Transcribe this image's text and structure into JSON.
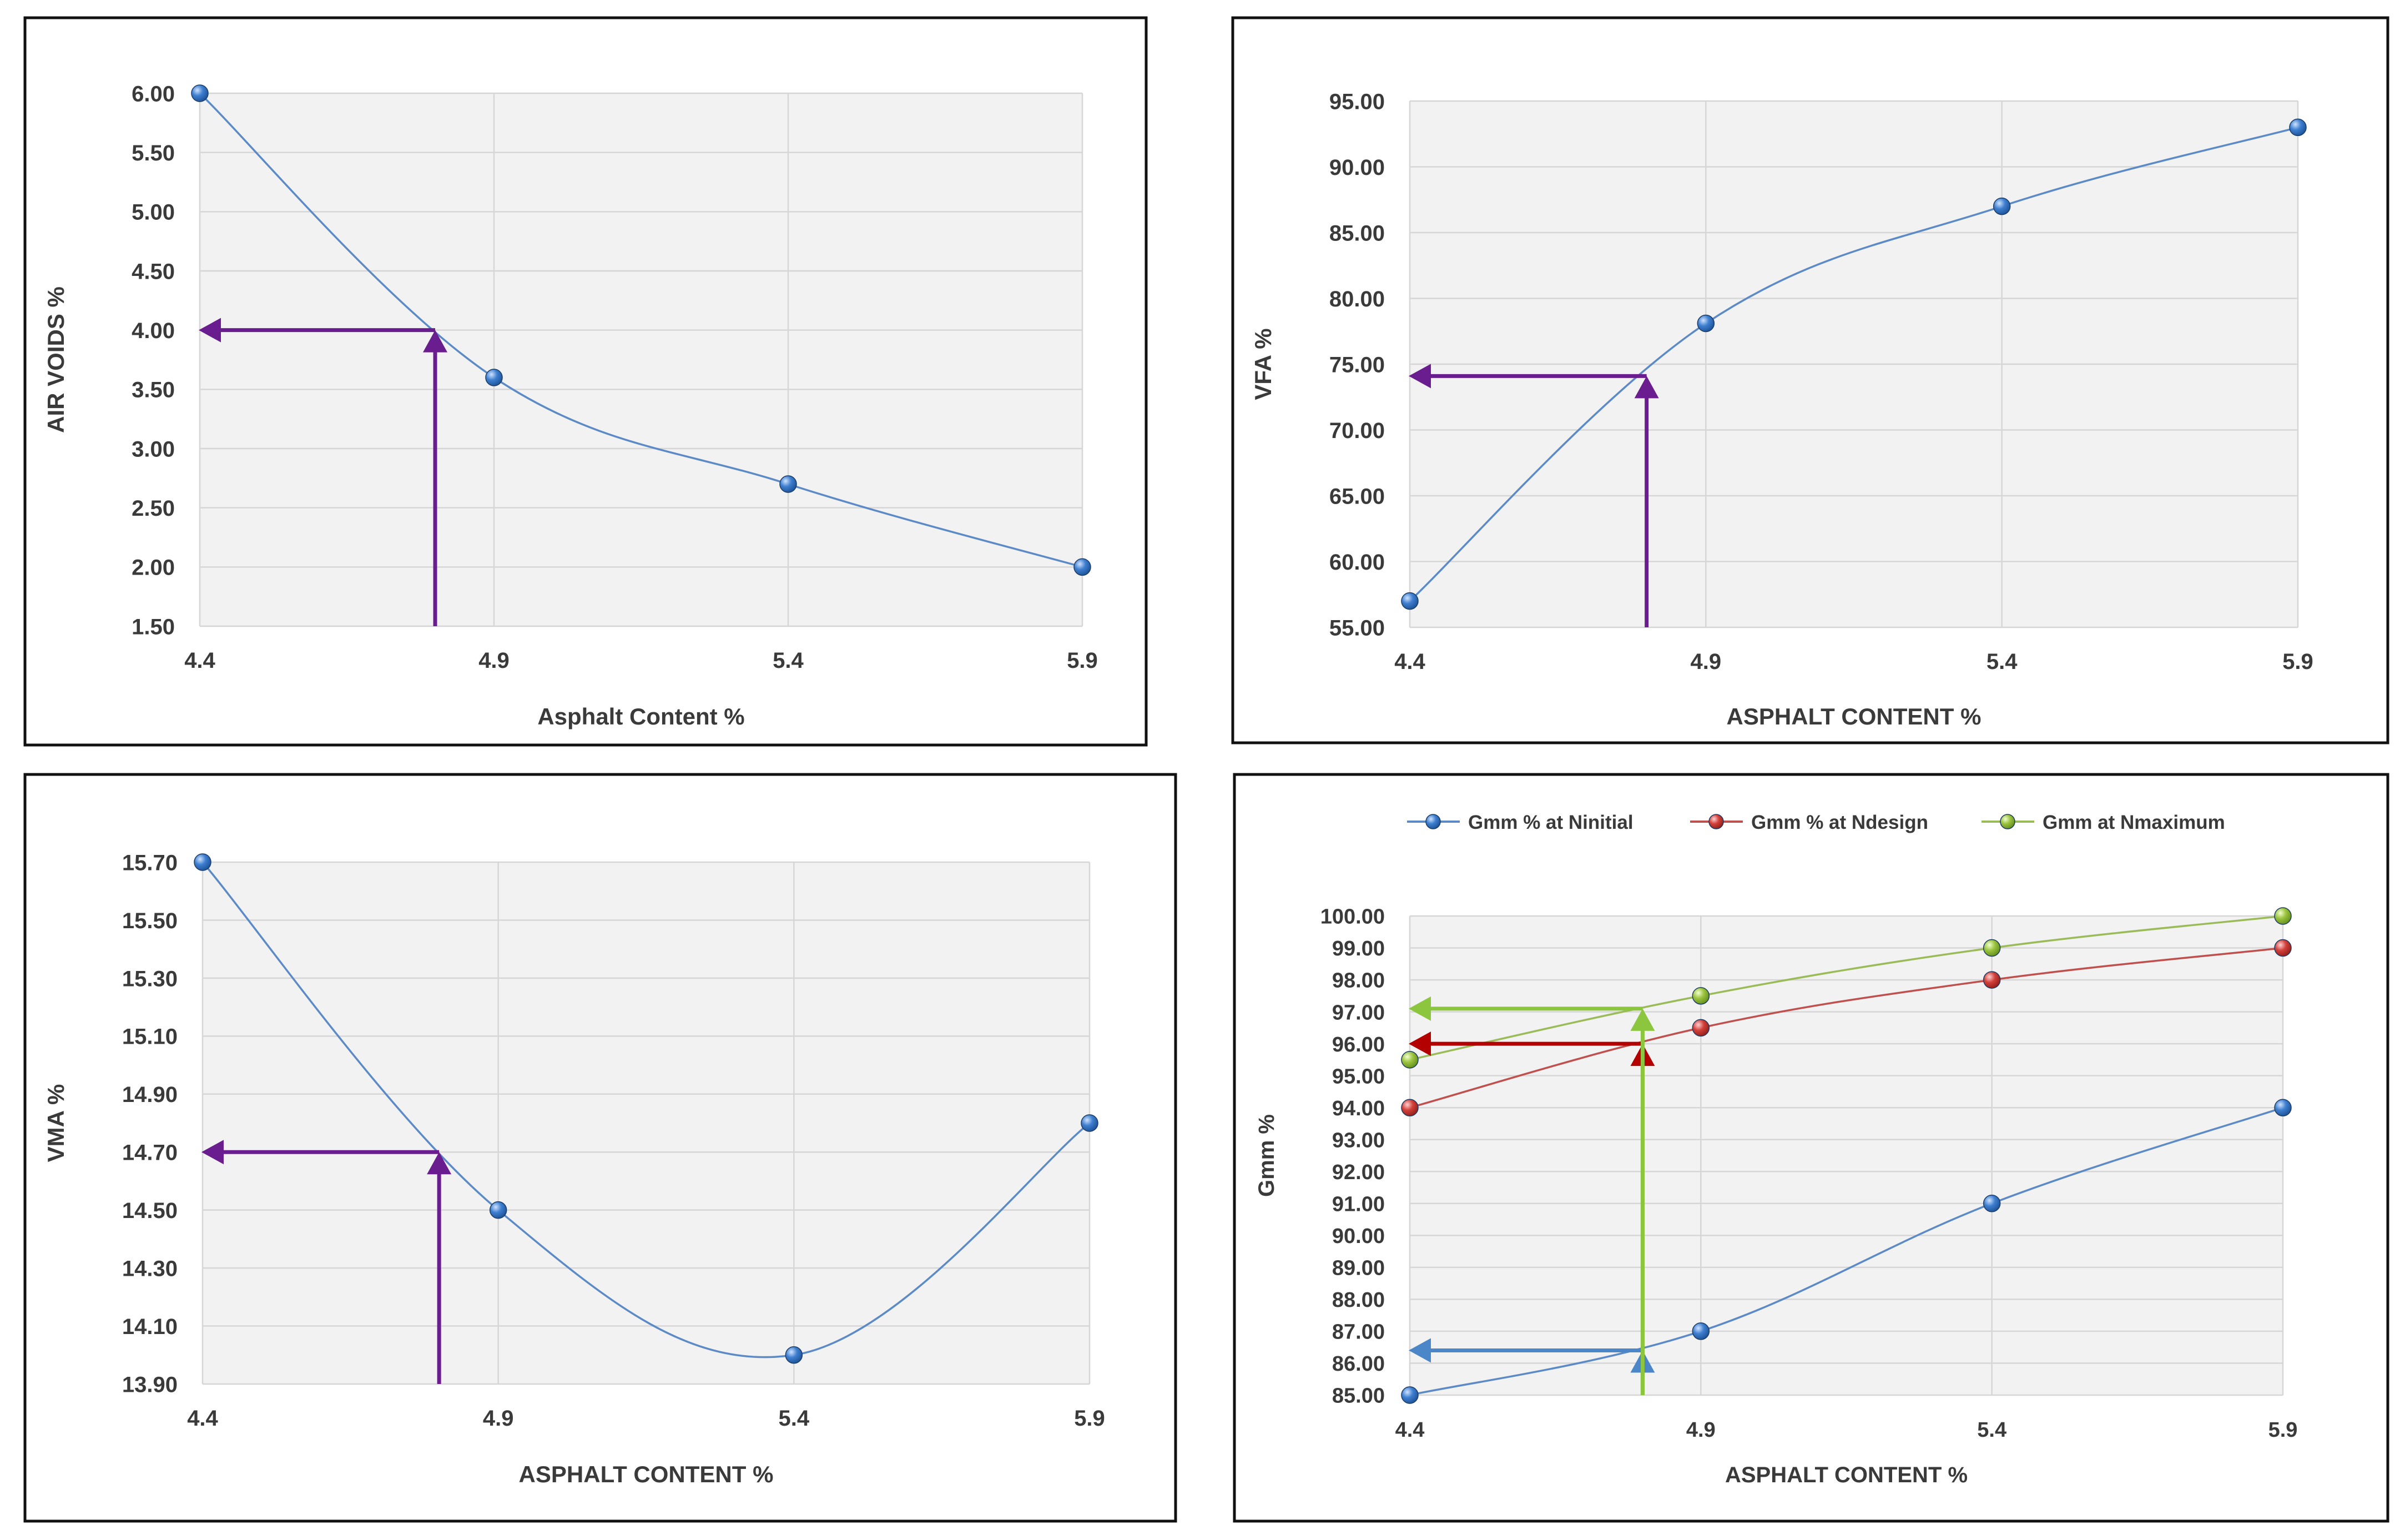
{
  "chart_data": [
    {
      "type": "line",
      "xlabel": "Asphalt Content %",
      "ylabel": "AIR VOIDS %",
      "x_ticks": [
        "4.4",
        "4.9",
        "5.4",
        "5.9"
      ],
      "y_ticks": [
        "1.50",
        "2.00",
        "2.50",
        "3.00",
        "3.50",
        "4.00",
        "4.50",
        "5.00",
        "5.50",
        "6.00"
      ],
      "xlim": [
        4.4,
        5.9
      ],
      "ylim": [
        1.5,
        6.0
      ],
      "grid": true,
      "series": [
        {
          "x": [
            4.4,
            4.9,
            5.4,
            5.9
          ],
          "y": [
            6.0,
            3.6,
            2.7,
            2.0
          ],
          "color": "#5b8ac6",
          "marker_color": "#2f6fc0"
        }
      ],
      "annotations": [
        {
          "x": 4.8,
          "y": 4.0,
          "color": "#6a1d8f"
        }
      ]
    },
    {
      "type": "line",
      "xlabel": "ASPHALT CONTENT %",
      "ylabel": "VFA %",
      "x_ticks": [
        "4.4",
        "4.9",
        "5.4",
        "5.9"
      ],
      "y_ticks": [
        "55.00",
        "60.00",
        "65.00",
        "70.00",
        "75.00",
        "80.00",
        "85.00",
        "90.00",
        "95.00"
      ],
      "xlim": [
        4.4,
        5.9
      ],
      "ylim": [
        55,
        95
      ],
      "grid": true,
      "series": [
        {
          "x": [
            4.4,
            4.9,
            5.4,
            5.9
          ],
          "y": [
            57.0,
            78.1,
            87.0,
            93.0
          ],
          "color": "#5b8ac6",
          "marker_color": "#2f6fc0"
        }
      ],
      "annotations": [
        {
          "x": 4.8,
          "y": 74.1,
          "color": "#6a1d8f"
        }
      ]
    },
    {
      "type": "line",
      "xlabel": "ASPHALT CONTENT %",
      "ylabel": "VMA %",
      "x_ticks": [
        "4.4",
        "4.9",
        "5.4",
        "5.9"
      ],
      "y_ticks": [
        "13.90",
        "14.10",
        "14.30",
        "14.50",
        "14.70",
        "14.90",
        "15.10",
        "15.30",
        "15.50",
        "15.70"
      ],
      "xlim": [
        4.4,
        5.9
      ],
      "ylim": [
        13.9,
        15.7
      ],
      "grid": true,
      "series": [
        {
          "x": [
            4.4,
            4.9,
            5.4,
            5.9
          ],
          "y": [
            15.7,
            14.5,
            14.0,
            14.8
          ],
          "color": "#5b8ac6",
          "marker_color": "#2f6fc0"
        }
      ],
      "annotations": [
        {
          "x": 4.8,
          "y": 14.7,
          "color": "#6a1d8f"
        }
      ]
    },
    {
      "type": "line",
      "xlabel": "ASPHALT CONTENT %",
      "ylabel": "Gmm %",
      "x_ticks": [
        "4.4",
        "4.9",
        "5.4",
        "5.9"
      ],
      "y_ticks": [
        "85.00",
        "86.00",
        "87.00",
        "88.00",
        "89.00",
        "90.00",
        "91.00",
        "92.00",
        "93.00",
        "94.00",
        "95.00",
        "96.00",
        "97.00",
        "98.00",
        "99.00",
        "100.00"
      ],
      "xlim": [
        4.4,
        5.9
      ],
      "ylim": [
        85,
        100
      ],
      "grid": true,
      "legend_position": "top",
      "series": [
        {
          "name": "Gmm % at Ninitial",
          "x": [
            4.4,
            4.9,
            5.4,
            5.9
          ],
          "y": [
            85.0,
            87.0,
            91.0,
            94.0
          ],
          "color": "#5b8ac6",
          "marker_color": "#2f6fc0"
        },
        {
          "name": "Gmm % at Ndesign",
          "x": [
            4.4,
            4.9,
            5.4,
            5.9
          ],
          "y": [
            94.0,
            96.5,
            98.0,
            99.0
          ],
          "color": "#c0504d",
          "marker_color": "#c0392b"
        },
        {
          "name": "Gmm at Nmaximum",
          "x": [
            4.4,
            4.9,
            5.4,
            5.9
          ],
          "y": [
            95.5,
            97.5,
            99.0,
            100.0
          ],
          "color": "#9bbb59",
          "marker_color": "#8bb832"
        }
      ],
      "annotations": [
        {
          "x": 4.8,
          "y": 86.4,
          "color": "#4a86c8"
        },
        {
          "x": 4.8,
          "y": 96.0,
          "color": "#b30000"
        },
        {
          "x": 4.8,
          "y": 97.1,
          "color": "#8cc63f"
        }
      ]
    }
  ]
}
